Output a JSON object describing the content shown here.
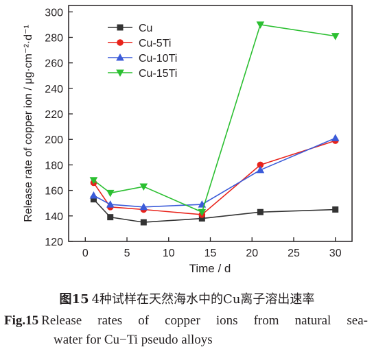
{
  "chart_data": {
    "type": "line",
    "xlabel": "Time / d",
    "ylabel": "Release rate of copper ion / μg·cm⁻²·d⁻¹",
    "xlim": [
      -2,
      32
    ],
    "ylim": [
      120,
      305
    ],
    "xticks": [
      0,
      5,
      10,
      15,
      20,
      25,
      30
    ],
    "yticks": [
      120,
      140,
      160,
      180,
      200,
      220,
      240,
      260,
      280,
      300
    ],
    "x": [
      1,
      3,
      7,
      14,
      21,
      30
    ],
    "legend_position": "top-left",
    "grid": false,
    "series": [
      {
        "name": "Cu",
        "color": "#333333",
        "marker": "square",
        "values": [
          153,
          139,
          135,
          138,
          143,
          145
        ]
      },
      {
        "name": "Cu-5Ti",
        "color": "#e8231b",
        "marker": "circle",
        "values": [
          166,
          147,
          145,
          141,
          180,
          199
        ]
      },
      {
        "name": "Cu-10Ti",
        "color": "#3b5bd9",
        "marker": "triangle-up",
        "values": [
          156,
          149,
          147,
          149,
          176,
          201
        ]
      },
      {
        "name": "Cu-15Ti",
        "color": "#2bbf31",
        "marker": "triangle-down",
        "values": [
          168,
          158,
          163,
          143,
          290,
          281
        ]
      }
    ]
  },
  "caption": {
    "cn_fig": "图15",
    "cn_text": "4种试样在天然海水中的Cu离子溶出速率",
    "en_fig": "Fig.15",
    "en_line1": "Release rates of copper ions from natural sea-",
    "en_line2": "water for Cu−Ti pseudo alloys"
  }
}
